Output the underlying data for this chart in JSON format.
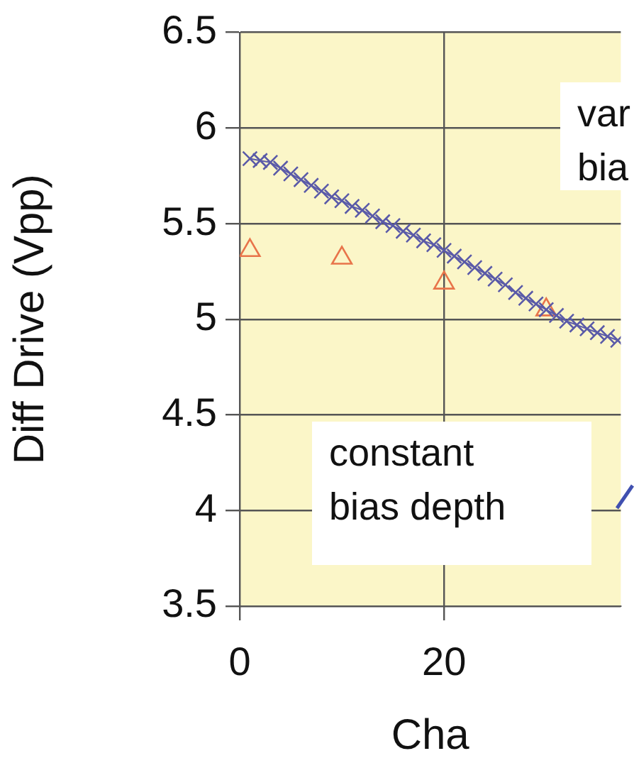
{
  "chart_data": {
    "type": "scatter",
    "xlabel": "Cha",
    "ylabel": "Diff Drive (Vpp)",
    "xlim": [
      0,
      37.3
    ],
    "xticks": [
      0,
      20
    ],
    "ylim": [
      3.5,
      6.5
    ],
    "yticks": [
      3.5,
      4,
      4.5,
      5,
      5.5,
      6,
      6.5
    ],
    "grid": true,
    "legend": false,
    "series": [
      {
        "type": "line",
        "marker": "cross",
        "color": "#5a5aa8",
        "x": [
          1,
          2,
          3,
          4,
          5,
          6,
          7,
          8,
          9,
          10,
          11,
          12,
          13,
          14,
          15,
          16,
          17,
          18,
          19,
          20,
          21,
          22,
          23,
          24,
          25,
          26,
          27,
          28,
          29,
          30,
          31,
          32,
          33,
          34,
          35,
          36,
          37
        ],
        "values": [
          5.84,
          5.83,
          5.82,
          5.79,
          5.76,
          5.73,
          5.7,
          5.67,
          5.64,
          5.62,
          5.59,
          5.57,
          5.54,
          5.51,
          5.49,
          5.46,
          5.44,
          5.41,
          5.39,
          5.36,
          5.33,
          5.3,
          5.27,
          5.24,
          5.21,
          5.18,
          5.14,
          5.11,
          5.08,
          5.05,
          5.02,
          4.99,
          4.97,
          4.95,
          4.93,
          4.91,
          4.89
        ]
      },
      {
        "marker": "triangle",
        "color": "#e8744a",
        "x": [
          1,
          10,
          20,
          30
        ],
        "values": [
          5.36,
          5.32,
          5.19,
          5.05
        ]
      }
    ],
    "annotations": [
      "var\nbia",
      "constant\nbias depth"
    ]
  }
}
